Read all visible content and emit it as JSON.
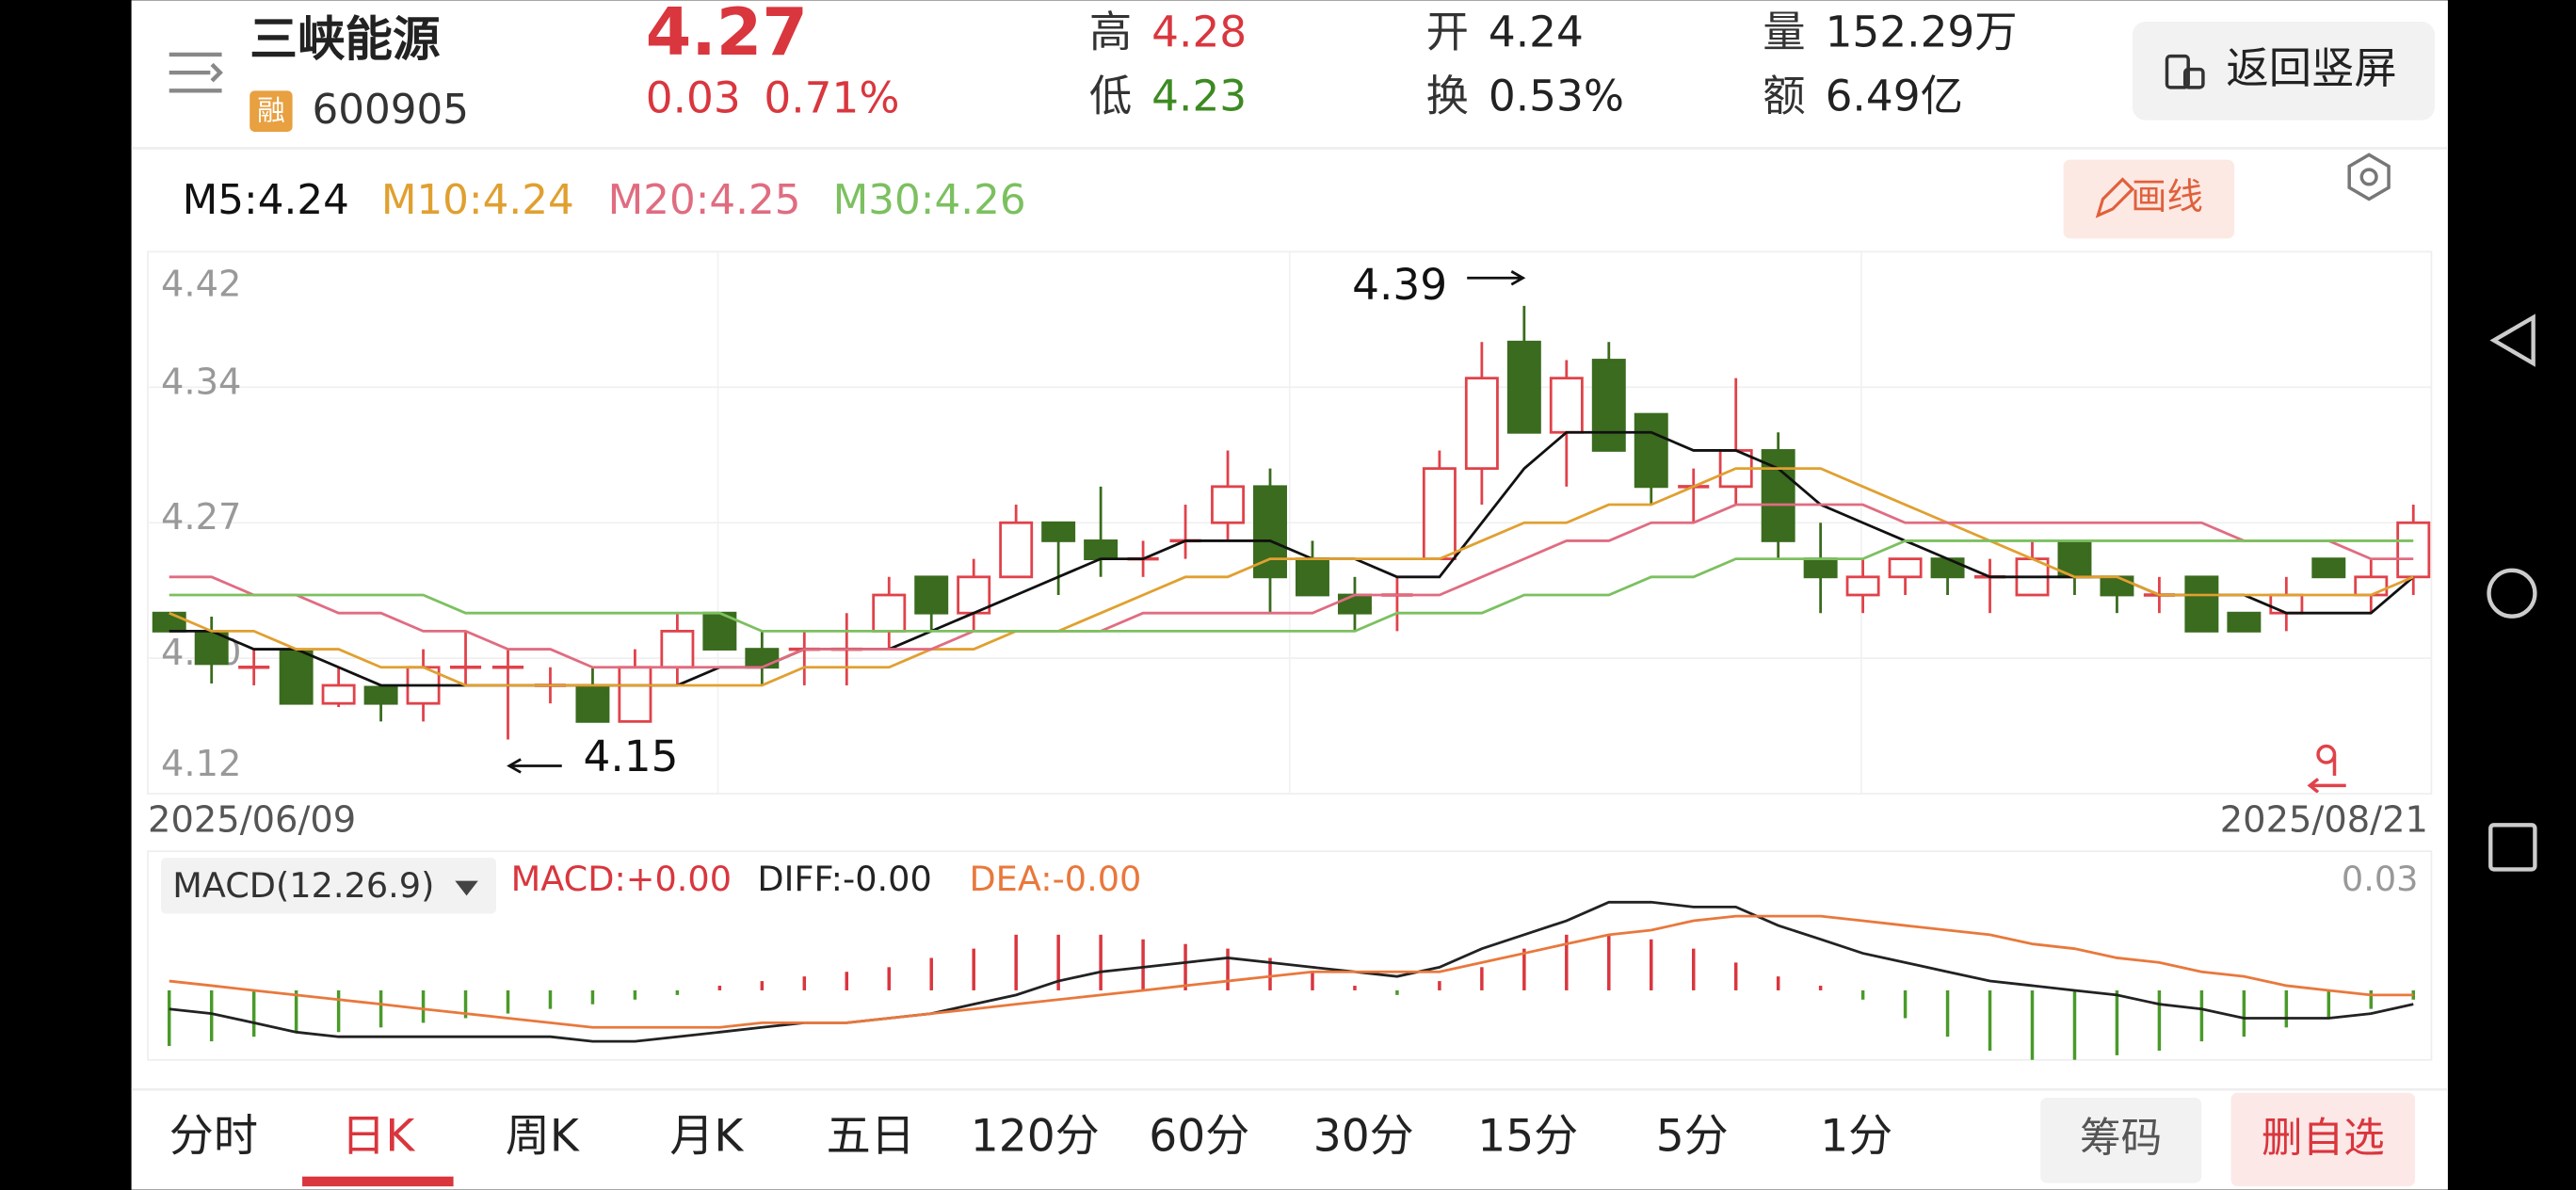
{
  "header": {
    "name": "三峡能源",
    "tag": "融",
    "code": "600905",
    "price": "4.27",
    "change": "0.03",
    "change_pct": "0.71%",
    "stats": [
      {
        "label": "高",
        "value": "4.28",
        "color": "#d9363e"
      },
      {
        "label": "低",
        "value": "4.23",
        "color": "#3d8a22"
      },
      {
        "label": "开",
        "value": "4.24",
        "color": "#222222"
      },
      {
        "label": "换",
        "value": "0.53%",
        "color": "#222222"
      },
      {
        "label": "量",
        "value": "152.29万",
        "color": "#222222"
      },
      {
        "label": "额",
        "value": "6.49亿",
        "color": "#222222"
      }
    ],
    "button": "返回竖屏"
  },
  "draw_button": "画线",
  "chart_data": [
    {
      "type": "candlestick",
      "categories": [
        "2025/06/09",
        null,
        null,
        null,
        null,
        null,
        null,
        null,
        null,
        null,
        null,
        null,
        null,
        null,
        null,
        null,
        null,
        null,
        null,
        null,
        null,
        null,
        null,
        null,
        null,
        null,
        null,
        null,
        null,
        null,
        null,
        null,
        null,
        null,
        null,
        null,
        null,
        null,
        null,
        null,
        null,
        null,
        null,
        null,
        null,
        null,
        null,
        null,
        null,
        null,
        null,
        null,
        null,
        "2025/08/21"
      ],
      "open": [
        4.22,
        4.209,
        4.19,
        4.199,
        4.17,
        4.179,
        4.17,
        4.19,
        4.19,
        4.18,
        4.18,
        4.16,
        4.19,
        4.22,
        4.2,
        4.2,
        4.2,
        4.21,
        4.24,
        4.22,
        4.24,
        4.27,
        4.26,
        4.25,
        4.26,
        4.27,
        4.29,
        4.25,
        4.23,
        4.23,
        4.25,
        4.3,
        4.37,
        4.32,
        4.36,
        4.33,
        4.29,
        4.29,
        4.31,
        4.25,
        4.23,
        4.24,
        4.25,
        4.24,
        4.23,
        4.26,
        4.24,
        4.23,
        4.24,
        4.22,
        4.22,
        4.25,
        4.23,
        4.24
      ],
      "high": [
        4.22,
        4.218,
        4.2,
        4.2,
        4.19,
        4.18,
        4.2,
        4.21,
        4.2,
        4.19,
        4.19,
        4.2,
        4.22,
        4.22,
        4.21,
        4.21,
        4.22,
        4.24,
        4.24,
        4.25,
        4.28,
        4.27,
        4.29,
        4.26,
        4.28,
        4.31,
        4.3,
        4.26,
        4.24,
        4.24,
        4.31,
        4.37,
        4.39,
        4.36,
        4.37,
        4.33,
        4.3,
        4.35,
        4.32,
        4.27,
        4.25,
        4.25,
        4.25,
        4.25,
        4.26,
        4.26,
        4.24,
        4.24,
        4.24,
        4.22,
        4.24,
        4.25,
        4.25,
        4.28
      ],
      "low": [
        4.21,
        4.181,
        4.18,
        4.17,
        4.168,
        4.16,
        4.16,
        4.18,
        4.15,
        4.17,
        4.16,
        4.16,
        4.18,
        4.2,
        4.18,
        4.18,
        4.18,
        4.2,
        4.21,
        4.21,
        4.24,
        4.23,
        4.24,
        4.24,
        4.25,
        4.26,
        4.22,
        4.23,
        4.21,
        4.21,
        4.25,
        4.28,
        4.32,
        4.29,
        4.31,
        4.28,
        4.27,
        4.28,
        4.25,
        4.22,
        4.22,
        4.23,
        4.23,
        4.22,
        4.23,
        4.23,
        4.22,
        4.22,
        4.21,
        4.21,
        4.21,
        4.24,
        4.22,
        4.23
      ],
      "close": [
        4.21,
        4.192,
        4.19,
        4.17,
        4.18,
        4.17,
        4.19,
        4.19,
        4.19,
        4.18,
        4.16,
        4.19,
        4.21,
        4.2,
        4.19,
        4.2,
        4.2,
        4.23,
        4.22,
        4.24,
        4.27,
        4.26,
        4.25,
        4.25,
        4.26,
        4.29,
        4.24,
        4.23,
        4.22,
        4.23,
        4.3,
        4.35,
        4.32,
        4.35,
        4.31,
        4.29,
        4.29,
        4.31,
        4.26,
        4.24,
        4.24,
        4.25,
        4.24,
        4.24,
        4.25,
        4.24,
        4.23,
        4.23,
        4.21,
        4.21,
        4.23,
        4.24,
        4.24,
        4.27
      ],
      "up_color": "#e0424a",
      "down_color": "#3a6b1e",
      "ylim": [
        4.12,
        4.42
      ],
      "yticks": [
        4.12,
        {
          "value": 4.195,
          "label": "4.20"
        },
        4.27,
        {
          "value": 4.345,
          "label": "4.34"
        },
        4.42
      ],
      "grid": true,
      "series": [
        {
          "name": "M5:4.24",
          "color": "#111111",
          "values": [
            4.21,
            4.21,
            4.2,
            4.2,
            4.19,
            4.18,
            4.18,
            4.18,
            4.18,
            4.18,
            4.18,
            4.18,
            4.18,
            4.19,
            4.19,
            4.2,
            4.2,
            4.2,
            4.21,
            4.22,
            4.23,
            4.24,
            4.25,
            4.25,
            4.26,
            4.26,
            4.26,
            4.25,
            4.25,
            4.24,
            4.24,
            4.27,
            4.3,
            4.32,
            4.32,
            4.32,
            4.31,
            4.31,
            4.3,
            4.28,
            4.27,
            4.26,
            4.25,
            4.24,
            4.24,
            4.24,
            4.24,
            4.23,
            4.23,
            4.23,
            4.22,
            4.22,
            4.22,
            4.24
          ]
        },
        {
          "name": "M10:4.24",
          "color": "#e0a030",
          "values": [
            4.22,
            4.21,
            4.21,
            4.2,
            4.2,
            4.19,
            4.19,
            4.18,
            4.18,
            4.18,
            4.18,
            4.18,
            4.18,
            4.18,
            4.18,
            4.19,
            4.19,
            4.19,
            4.2,
            4.2,
            4.21,
            4.21,
            4.22,
            4.23,
            4.24,
            4.24,
            4.25,
            4.25,
            4.25,
            4.25,
            4.25,
            4.26,
            4.27,
            4.27,
            4.28,
            4.28,
            4.29,
            4.3,
            4.3,
            4.3,
            4.29,
            4.28,
            4.27,
            4.26,
            4.25,
            4.24,
            4.24,
            4.23,
            4.23,
            4.23,
            4.23,
            4.23,
            4.23,
            4.24
          ]
        },
        {
          "name": "M20:4.25",
          "color": "#e06c80",
          "values": [
            4.24,
            4.24,
            4.23,
            4.23,
            4.22,
            4.22,
            4.21,
            4.21,
            4.2,
            4.2,
            4.19,
            4.19,
            4.19,
            4.19,
            4.19,
            4.2,
            4.2,
            4.2,
            4.2,
            4.21,
            4.21,
            4.21,
            4.21,
            4.22,
            4.22,
            4.22,
            4.22,
            4.22,
            4.23,
            4.23,
            4.23,
            4.24,
            4.25,
            4.26,
            4.26,
            4.27,
            4.27,
            4.28,
            4.28,
            4.28,
            4.28,
            4.27,
            4.27,
            4.27,
            4.27,
            4.27,
            4.27,
            4.27,
            4.27,
            4.26,
            4.26,
            4.26,
            4.25,
            4.25
          ]
        },
        {
          "name": "M30:4.26",
          "color": "#7cc060",
          "values": [
            4.23,
            4.23,
            4.23,
            4.23,
            4.23,
            4.23,
            4.23,
            4.22,
            4.22,
            4.22,
            4.22,
            4.22,
            4.22,
            4.22,
            4.21,
            4.21,
            4.21,
            4.21,
            4.21,
            4.21,
            4.21,
            4.21,
            4.21,
            4.21,
            4.21,
            4.21,
            4.21,
            4.21,
            4.21,
            4.22,
            4.22,
            4.22,
            4.23,
            4.23,
            4.23,
            4.24,
            4.24,
            4.25,
            4.25,
            4.25,
            4.25,
            4.26,
            4.26,
            4.26,
            4.26,
            4.26,
            4.26,
            4.26,
            4.26,
            4.26,
            4.26,
            4.26,
            4.26,
            4.26
          ]
        }
      ],
      "annotations": [
        {
          "text": "4.39",
          "arrow": "right"
        },
        {
          "text": "4.15",
          "arrow": "left"
        }
      ]
    },
    {
      "type": "macd",
      "indicator": "MACD(12.26.9)",
      "ylim": [
        -0.015,
        0.03
      ],
      "yticks": [
        0.03
      ],
      "series": [
        {
          "name": "MACD:+0.00",
          "kind": "bar",
          "color": "#d9363e",
          "negative_color": "#4a9a2a",
          "values": [
            -0.012,
            -0.011,
            -0.01,
            -0.009,
            -0.009,
            -0.008,
            -0.007,
            -0.006,
            -0.005,
            -0.004,
            -0.003,
            -0.002,
            -0.001,
            0.001,
            0.002,
            0.003,
            0.004,
            0.005,
            0.007,
            0.009,
            0.012,
            0.012,
            0.012,
            0.011,
            0.01,
            0.009,
            0.007,
            0.004,
            0.001,
            -0.001,
            0.002,
            0.005,
            0.009,
            0.012,
            0.012,
            0.011,
            0.009,
            0.006,
            0.003,
            0.001,
            -0.002,
            -0.006,
            -0.01,
            -0.013,
            -0.015,
            -0.015,
            -0.014,
            -0.013,
            -0.011,
            -0.01,
            -0.008,
            -0.006,
            -0.004,
            -0.002
          ]
        },
        {
          "name": "DIFF:-0.00",
          "kind": "line",
          "color": "#222222",
          "values": [
            -0.004,
            -0.005,
            -0.007,
            -0.009,
            -0.01,
            -0.01,
            -0.01,
            -0.01,
            -0.01,
            -0.01,
            -0.011,
            -0.011,
            -0.01,
            -0.009,
            -0.008,
            -0.007,
            -0.007,
            -0.006,
            -0.005,
            -0.003,
            -0.001,
            0.002,
            0.004,
            0.005,
            0.006,
            0.007,
            0.006,
            0.005,
            0.004,
            0.003,
            0.005,
            0.009,
            0.012,
            0.015,
            0.019,
            0.019,
            0.018,
            0.018,
            0.014,
            0.011,
            0.008,
            0.006,
            0.004,
            0.002,
            0.001,
            0.0,
            -0.001,
            -0.003,
            -0.004,
            -0.006,
            -0.006,
            -0.006,
            -0.005,
            -0.003
          ]
        },
        {
          "name": "DEA:-0.00",
          "kind": "line",
          "color": "#e9783c",
          "values": [
            0.002,
            0.001,
            0.0,
            -0.001,
            -0.002,
            -0.003,
            -0.004,
            -0.005,
            -0.006,
            -0.007,
            -0.008,
            -0.008,
            -0.008,
            -0.008,
            -0.007,
            -0.007,
            -0.007,
            -0.006,
            -0.005,
            -0.004,
            -0.003,
            -0.002,
            -0.001,
            0.0,
            0.001,
            0.002,
            0.003,
            0.004,
            0.004,
            0.004,
            0.004,
            0.006,
            0.008,
            0.01,
            0.012,
            0.013,
            0.015,
            0.016,
            0.016,
            0.016,
            0.015,
            0.014,
            0.013,
            0.012,
            0.01,
            0.009,
            0.007,
            0.006,
            0.004,
            0.003,
            0.001,
            0.0,
            -0.001,
            -0.001
          ]
        }
      ]
    }
  ],
  "tabs": [
    "分时",
    "日K",
    "周K",
    "月K",
    "五日",
    "120分",
    "60分",
    "30分",
    "15分",
    "5分",
    "1分"
  ],
  "active_tab": 1,
  "actions": [
    "筹码",
    "删自选"
  ]
}
